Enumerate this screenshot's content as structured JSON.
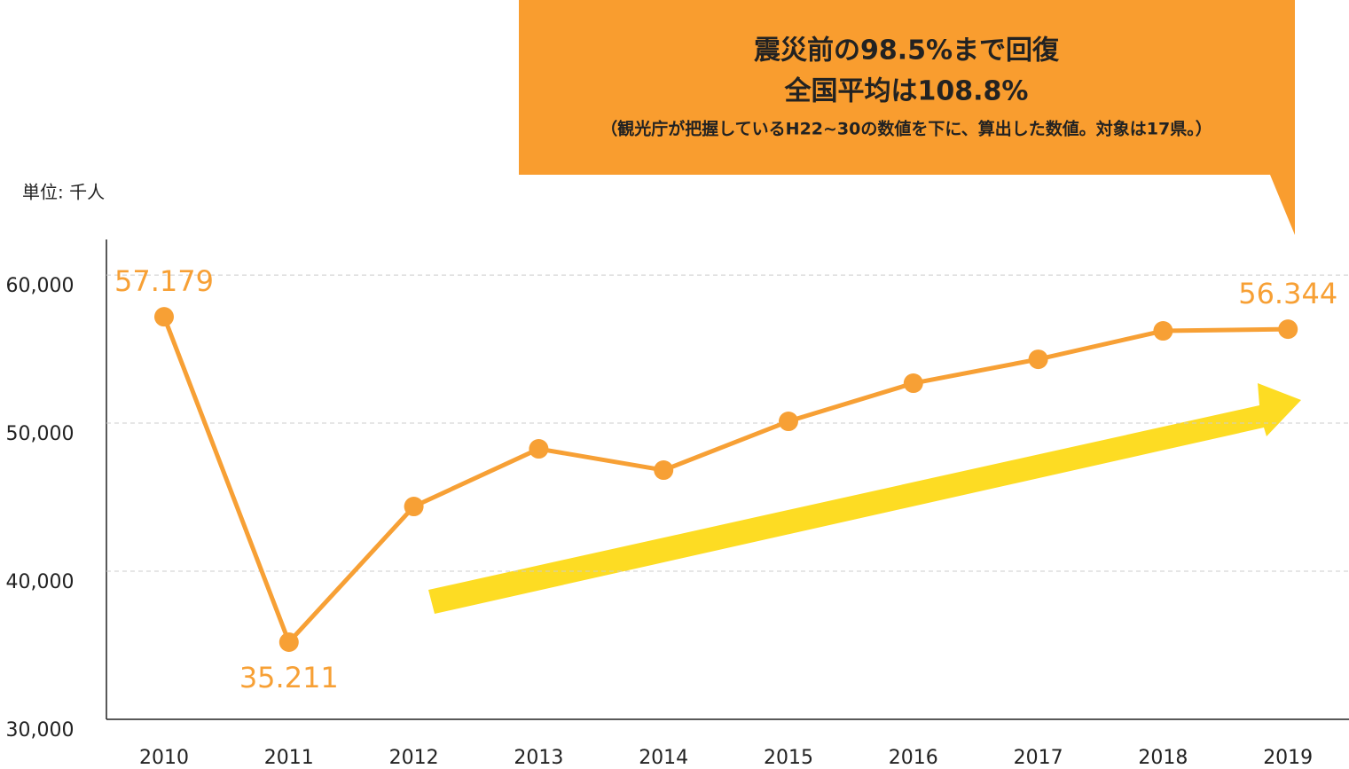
{
  "chart_data": {
    "type": "line",
    "unit_label": "単位: 千人",
    "annotation": {
      "lines": [
        "震災前の98.5%まで回復",
        "全国平均は108.8%"
      ],
      "note": "（観光庁が把握しているH22~30の数値を下に、算出した数値。対象は17県。）"
    },
    "categories": [
      "2010",
      "2011",
      "2012",
      "2013",
      "2014",
      "2015",
      "2016",
      "2017",
      "2018",
      "2019"
    ],
    "series": [
      {
        "name": null,
        "color": "#f7a035",
        "values": [
          57179,
          35211,
          44371,
          48263,
          46826,
          50120,
          52695,
          54311,
          56228,
          56344
        ],
        "value_labels": [
          "57.179",
          "35.211",
          null,
          null,
          null,
          null,
          null,
          null,
          null,
          "56.344"
        ]
      }
    ],
    "ylim": [
      30000,
      62400
    ],
    "yticks": [
      {
        "value": 30000,
        "label": "30,000"
      },
      {
        "value": 40000,
        "label": "40,000"
      },
      {
        "value": 50000,
        "label": "50,000"
      },
      {
        "value": 60000,
        "label": "60,000"
      }
    ],
    "grid": true
  }
}
